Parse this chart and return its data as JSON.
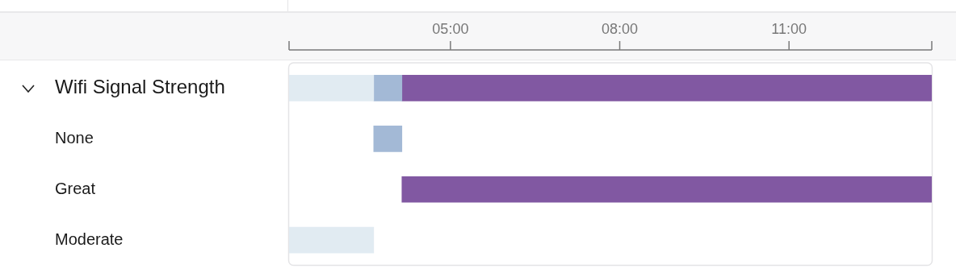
{
  "chart_data": {
    "type": "bar",
    "orientation": "horizontal",
    "categories": [
      "Wifi Signal Strength",
      "None",
      "Great",
      "Moderate"
    ],
    "xlim": [
      2.14,
      13.53
    ],
    "xticks": [
      {
        "value": 2.14,
        "label": null
      },
      {
        "value": 5,
        "label": "05:00"
      },
      {
        "value": 8,
        "label": "08:00"
      },
      {
        "value": 11,
        "label": "11:00"
      },
      {
        "value": 13.53,
        "label": null
      }
    ],
    "series": [
      {
        "color": "#e1ebf2",
        "base": [
          2.14,
          null,
          null,
          2.14
        ],
        "values": [
          1.5,
          null,
          null,
          1.5
        ]
      },
      {
        "color": "#a3b9d6",
        "base": [
          3.64,
          3.64,
          null,
          null
        ],
        "values": [
          0.5,
          0.5,
          null,
          null
        ]
      },
      {
        "color": "#8158a2",
        "base": [
          4.14,
          null,
          4.14,
          null
        ],
        "values": [
          9.39,
          null,
          9.39,
          null
        ]
      }
    ],
    "grid": false,
    "legend": false
  }
}
